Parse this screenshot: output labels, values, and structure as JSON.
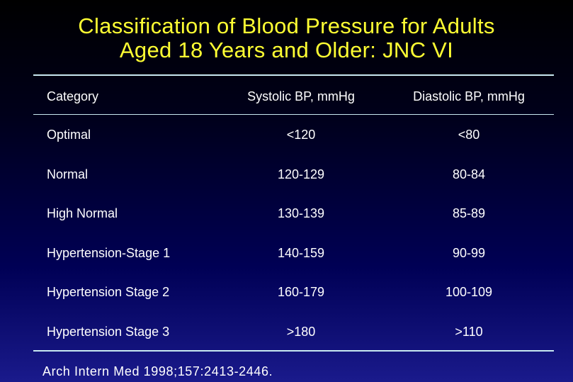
{
  "title": {
    "line1": "Classification of Blood Pressure for Adults",
    "line2": "Aged 18 Years and Older: JNC VI"
  },
  "table": {
    "headers": [
      "Category",
      "Systolic BP, mmHg",
      "Diastolic BP, mmHg"
    ],
    "rows": [
      [
        "Optimal",
        "<120",
        "<80"
      ],
      [
        "Normal",
        "120-129",
        "80-84"
      ],
      [
        "High Normal",
        "130-139",
        "85-89"
      ],
      [
        "Hypertension-Stage 1",
        "140-159",
        "90-99"
      ],
      [
        "Hypertension Stage 2",
        "160-179",
        "100-109"
      ],
      [
        "Hypertension Stage 3",
        ">180",
        ">110"
      ]
    ]
  },
  "citation": "Arch Intern Med 1998;157:2413-2446.",
  "colors": {
    "title": "#ffff33",
    "text": "#ffffff",
    "rule": "#c8e8f0",
    "background_top": "#000000",
    "background_bottom": "#1a1a8c"
  }
}
